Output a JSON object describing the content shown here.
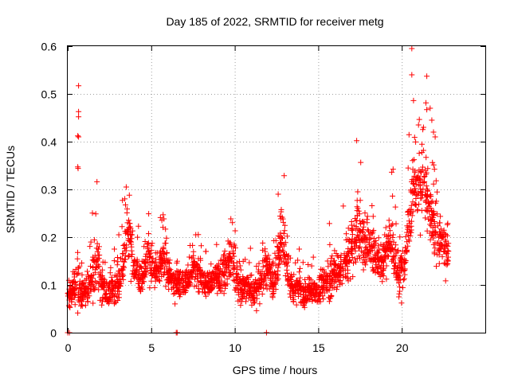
{
  "chart_data": {
    "type": "scatter",
    "title": "Day 185 of 2022, SRMTID for receiver metg",
    "xlabel": "GPS time / hours",
    "ylabel": "SRMTID / TECUs",
    "xlim": [
      0,
      25
    ],
    "ylim": [
      0,
      0.6
    ],
    "xticks": [
      0,
      5,
      10,
      15,
      20
    ],
    "yticks": [
      0,
      0.1,
      0.2,
      0.3,
      0.4,
      0.5,
      0.6
    ],
    "xtick_labels": [
      "0",
      "5",
      "10",
      "15",
      "20"
    ],
    "ytick_labels": [
      "0",
      "0.1",
      "0.2",
      "0.3",
      "0.4",
      "0.5",
      "0.6"
    ],
    "grid": true,
    "marker": "+",
    "color": "#ff0000",
    "series": [
      {
        "name": "SRMTID",
        "envelope": [
          [
            0.0,
            0.07,
            0.03
          ],
          [
            0.3,
            0.09,
            0.03
          ],
          [
            0.6,
            0.1,
            0.05
          ],
          [
            0.9,
            0.08,
            0.03
          ],
          [
            1.2,
            0.09,
            0.03
          ],
          [
            1.5,
            0.12,
            0.05
          ],
          [
            1.8,
            0.15,
            0.06
          ],
          [
            2.1,
            0.1,
            0.04
          ],
          [
            2.4,
            0.08,
            0.03
          ],
          [
            2.7,
            0.09,
            0.03
          ],
          [
            3.0,
            0.1,
            0.04
          ],
          [
            3.3,
            0.14,
            0.05
          ],
          [
            3.6,
            0.22,
            0.06
          ],
          [
            3.9,
            0.16,
            0.05
          ],
          [
            4.2,
            0.12,
            0.04
          ],
          [
            4.5,
            0.12,
            0.04
          ],
          [
            4.8,
            0.17,
            0.05
          ],
          [
            5.1,
            0.13,
            0.04
          ],
          [
            5.4,
            0.12,
            0.04
          ],
          [
            5.7,
            0.16,
            0.04
          ],
          [
            6.0,
            0.13,
            0.04
          ],
          [
            6.3,
            0.1,
            0.03
          ],
          [
            6.6,
            0.11,
            0.03
          ],
          [
            6.9,
            0.1,
            0.03
          ],
          [
            7.2,
            0.11,
            0.03
          ],
          [
            7.5,
            0.13,
            0.04
          ],
          [
            7.8,
            0.12,
            0.04
          ],
          [
            8.1,
            0.11,
            0.03
          ],
          [
            8.4,
            0.1,
            0.03
          ],
          [
            8.7,
            0.11,
            0.03
          ],
          [
            9.0,
            0.12,
            0.04
          ],
          [
            9.3,
            0.13,
            0.04
          ],
          [
            9.6,
            0.14,
            0.04
          ],
          [
            9.9,
            0.15,
            0.05
          ],
          [
            10.2,
            0.1,
            0.04
          ],
          [
            10.5,
            0.09,
            0.03
          ],
          [
            10.8,
            0.1,
            0.04
          ],
          [
            11.1,
            0.08,
            0.03
          ],
          [
            11.4,
            0.1,
            0.04
          ],
          [
            11.7,
            0.12,
            0.04
          ],
          [
            12.0,
            0.14,
            0.05
          ],
          [
            12.3,
            0.1,
            0.04
          ],
          [
            12.6,
            0.16,
            0.05
          ],
          [
            12.9,
            0.2,
            0.06
          ],
          [
            13.2,
            0.11,
            0.04
          ],
          [
            13.5,
            0.09,
            0.03
          ],
          [
            13.8,
            0.1,
            0.03
          ],
          [
            14.1,
            0.08,
            0.03
          ],
          [
            14.4,
            0.08,
            0.03
          ],
          [
            14.7,
            0.09,
            0.03
          ],
          [
            15.0,
            0.09,
            0.03
          ],
          [
            15.3,
            0.1,
            0.03
          ],
          [
            15.6,
            0.11,
            0.04
          ],
          [
            15.9,
            0.12,
            0.04
          ],
          [
            16.2,
            0.13,
            0.04
          ],
          [
            16.5,
            0.14,
            0.05
          ],
          [
            16.8,
            0.16,
            0.06
          ],
          [
            17.1,
            0.2,
            0.07
          ],
          [
            17.4,
            0.22,
            0.08
          ],
          [
            17.7,
            0.18,
            0.06
          ],
          [
            18.0,
            0.2,
            0.06
          ],
          [
            18.3,
            0.17,
            0.05
          ],
          [
            18.6,
            0.16,
            0.05
          ],
          [
            18.9,
            0.15,
            0.05
          ],
          [
            19.2,
            0.2,
            0.06
          ],
          [
            19.5,
            0.17,
            0.06
          ],
          [
            19.8,
            0.12,
            0.05
          ],
          [
            20.1,
            0.14,
            0.05
          ],
          [
            20.4,
            0.22,
            0.07
          ],
          [
            20.7,
            0.32,
            0.08
          ],
          [
            21.0,
            0.3,
            0.08
          ],
          [
            21.3,
            0.33,
            0.08
          ],
          [
            21.6,
            0.25,
            0.07
          ],
          [
            21.9,
            0.22,
            0.06
          ],
          [
            22.2,
            0.2,
            0.06
          ],
          [
            22.5,
            0.18,
            0.05
          ],
          [
            22.8,
            0.17,
            0.04
          ]
        ],
        "highlights": [
          [
            0.65,
            0.517
          ],
          [
            0.65,
            0.463
          ],
          [
            0.65,
            0.452
          ],
          [
            0.6,
            0.412
          ],
          [
            0.65,
            0.41
          ],
          [
            0.6,
            0.347
          ],
          [
            0.62,
            0.344
          ],
          [
            1.75,
            0.316
          ],
          [
            3.5,
            0.305
          ],
          [
            17.3,
            0.402
          ],
          [
            20.6,
            0.595
          ],
          [
            20.6,
            0.54
          ],
          [
            21.5,
            0.537
          ],
          [
            20.7,
            0.486
          ],
          [
            21.7,
            0.47
          ],
          [
            21.5,
            0.467
          ],
          [
            21.8,
            0.445
          ],
          [
            21.9,
            0.42
          ],
          [
            21.0,
            0.435
          ],
          [
            21.3,
            0.43
          ],
          [
            22.0,
            0.41
          ],
          [
            19.4,
            0.336
          ],
          [
            12.6,
            0.29
          ],
          [
            0.0,
            0.0
          ],
          [
            0.1,
            0.0
          ],
          [
            6.5,
            0.0
          ],
          [
            6.55,
            0.0
          ],
          [
            11.9,
            0.0
          ]
        ]
      }
    ]
  }
}
